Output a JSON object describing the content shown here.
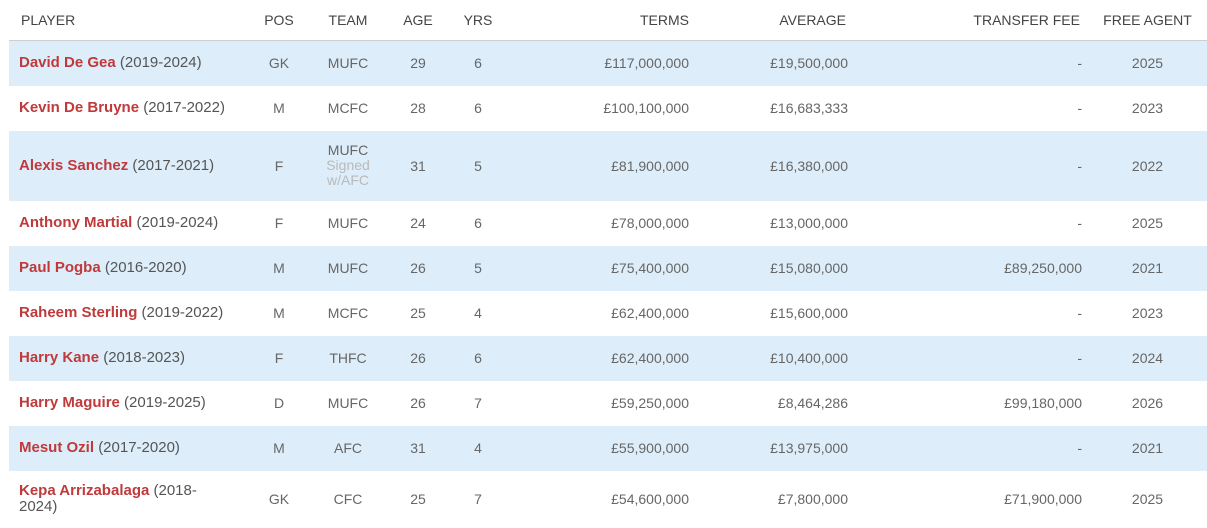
{
  "columns": {
    "player": "PLAYER",
    "pos": "POS",
    "team": "TEAM",
    "age": "AGE",
    "yrs": "YRS",
    "terms": "TERMS",
    "average": "AVERAGE",
    "transfer_fee": "TRANSFER FEE",
    "free_agent": "FREE AGENT"
  },
  "rows": [
    {
      "name": "David De Gea",
      "years": "(2019-2024)",
      "pos": "GK",
      "team": "MUFC",
      "team_note": "",
      "age": "29",
      "yrs": "6",
      "terms": "£117,000,000",
      "average": "£19,500,000",
      "transfer_fee": "-",
      "free_agent": "2025"
    },
    {
      "name": "Kevin De Bruyne",
      "years": "(2017-2022)",
      "pos": "M",
      "team": "MCFC",
      "team_note": "",
      "age": "28",
      "yrs": "6",
      "terms": "£100,100,000",
      "average": "£16,683,333",
      "transfer_fee": "-",
      "free_agent": "2023"
    },
    {
      "name": "Alexis Sanchez",
      "years": "(2017-2021)",
      "pos": "F",
      "team": "MUFC",
      "team_note": "Signed w/AFC",
      "age": "31",
      "yrs": "5",
      "terms": "£81,900,000",
      "average": "£16,380,000",
      "transfer_fee": "-",
      "free_agent": "2022"
    },
    {
      "name": "Anthony Martial",
      "years": "(2019-2024)",
      "pos": "F",
      "team": "MUFC",
      "team_note": "",
      "age": "24",
      "yrs": "6",
      "terms": "£78,000,000",
      "average": "£13,000,000",
      "transfer_fee": "-",
      "free_agent": "2025"
    },
    {
      "name": "Paul Pogba",
      "years": "(2016-2020)",
      "pos": "M",
      "team": "MUFC",
      "team_note": "",
      "age": "26",
      "yrs": "5",
      "terms": "£75,400,000",
      "average": "£15,080,000",
      "transfer_fee": "£89,250,000",
      "free_agent": "2021"
    },
    {
      "name": "Raheem Sterling",
      "years": "(2019-2022)",
      "pos": "M",
      "team": "MCFC",
      "team_note": "",
      "age": "25",
      "yrs": "4",
      "terms": "£62,400,000",
      "average": "£15,600,000",
      "transfer_fee": "-",
      "free_agent": "2023"
    },
    {
      "name": "Harry Kane",
      "years": "(2018-2023)",
      "pos": "F",
      "team": "THFC",
      "team_note": "",
      "age": "26",
      "yrs": "6",
      "terms": "£62,400,000",
      "average": "£10,400,000",
      "transfer_fee": "-",
      "free_agent": "2024"
    },
    {
      "name": "Harry Maguire",
      "years": "(2019-2025)",
      "pos": "D",
      "team": "MUFC",
      "team_note": "",
      "age": "26",
      "yrs": "7",
      "terms": "£59,250,000",
      "average": "£8,464,286",
      "transfer_fee": "£99,180,000",
      "free_agent": "2026"
    },
    {
      "name": "Mesut Ozil",
      "years": "(2017-2020)",
      "pos": "M",
      "team": "AFC",
      "team_note": "",
      "age": "31",
      "yrs": "4",
      "terms": "£55,900,000",
      "average": "£13,975,000",
      "transfer_fee": "-",
      "free_agent": "2021"
    },
    {
      "name": "Kepa Arrizabalaga",
      "years": "(2018-2024)",
      "pos": "GK",
      "team": "CFC",
      "team_note": "",
      "age": "25",
      "yrs": "7",
      "terms": "£54,600,000",
      "average": "£7,800,000",
      "transfer_fee": "£71,900,000",
      "free_agent": "2025"
    }
  ]
}
